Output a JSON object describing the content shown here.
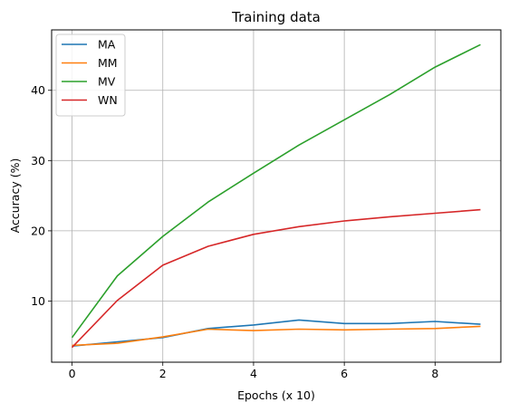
{
  "chart_data": {
    "type": "line",
    "title": "Training data",
    "xlabel": "Epochs (x 10)",
    "ylabel": "Accuracy (%)",
    "x": [
      0,
      1,
      2,
      3,
      4,
      5,
      6,
      7,
      8,
      9
    ],
    "xlim": [
      -0.45,
      9.45
    ],
    "ylim": [
      1.3,
      48.6
    ],
    "xticks": [
      0,
      2,
      4,
      6,
      8
    ],
    "yticks": [
      10,
      20,
      30,
      40
    ],
    "grid": true,
    "legend_position": "top-left",
    "series": [
      {
        "name": "MA",
        "color": "#1f77b4",
        "values": [
          3.6,
          4.2,
          4.8,
          6.1,
          6.6,
          7.3,
          6.8,
          6.8,
          7.1,
          6.7
        ]
      },
      {
        "name": "MM",
        "color": "#ff7f0e",
        "values": [
          3.7,
          4.0,
          4.9,
          6.0,
          5.8,
          6.0,
          5.9,
          6.0,
          6.1,
          6.4
        ]
      },
      {
        "name": "MV",
        "color": "#2ca02c",
        "values": [
          4.8,
          13.6,
          19.2,
          24.1,
          28.2,
          32.2,
          35.8,
          39.4,
          43.3,
          46.5
        ]
      },
      {
        "name": "WN",
        "color": "#d62728",
        "values": [
          3.4,
          10.1,
          15.1,
          17.8,
          19.5,
          20.6,
          21.4,
          22.0,
          22.5,
          23.0
        ]
      }
    ]
  }
}
